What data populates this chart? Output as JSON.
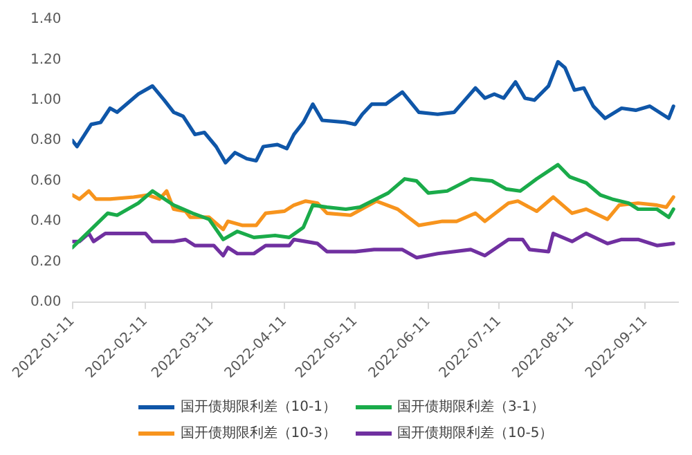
{
  "chart_data": {
    "type": "line",
    "xlim": [
      "2022-01-11",
      "2022-09-25"
    ],
    "xticks": [
      "2022-01-11",
      "2022-02-11",
      "2022-03-11",
      "2022-04-11",
      "2022-05-11",
      "2022-06-11",
      "2022-07-11",
      "2022-08-11",
      "2022-09-11"
    ],
    "ylim": [
      0,
      1.4
    ],
    "yticks": [
      {
        "value": 0,
        "label": "0.00"
      },
      {
        "value": 0.2,
        "label": "0.20"
      },
      {
        "value": 0.4,
        "label": "0.40"
      },
      {
        "value": 0.6,
        "label": "0.60"
      },
      {
        "value": 0.8,
        "label": "0.80"
      },
      {
        "value": 1,
        "label": "1.00"
      },
      {
        "value": 1.2,
        "label": "1.20"
      },
      {
        "value": 1.4,
        "label": "1.40"
      }
    ],
    "grid": false,
    "legend": "bottom",
    "marker": "none",
    "line_style": "solid",
    "series": [
      {
        "name": "国开债期限利差（10-1）",
        "color": "#0f56a8",
        "x": [
          "2022-01-11",
          "2022-01-13",
          "2022-01-19",
          "2022-01-23",
          "2022-01-27",
          "2022-01-30",
          "2022-02-08",
          "2022-02-14",
          "2022-02-19",
          "2022-02-23",
          "2022-02-27",
          "2022-03-04",
          "2022-03-08",
          "2022-03-13",
          "2022-03-17",
          "2022-03-21",
          "2022-03-26",
          "2022-03-30",
          "2022-04-02",
          "2022-04-08",
          "2022-04-12",
          "2022-04-15",
          "2022-04-19",
          "2022-04-23",
          "2022-04-27",
          "2022-05-07",
          "2022-05-11",
          "2022-05-14",
          "2022-05-18",
          "2022-05-24",
          "2022-05-31",
          "2022-06-07",
          "2022-06-15",
          "2022-06-22",
          "2022-06-25",
          "2022-07-01",
          "2022-07-05",
          "2022-07-09",
          "2022-07-13",
          "2022-07-18",
          "2022-07-22",
          "2022-07-26",
          "2022-08-01",
          "2022-08-05",
          "2022-08-08",
          "2022-08-12",
          "2022-08-16",
          "2022-08-20",
          "2022-08-25",
          "2022-09-01",
          "2022-09-07",
          "2022-09-13",
          "2022-09-17",
          "2022-09-21",
          "2022-09-23"
        ],
        "values": [
          0.8,
          0.77,
          0.88,
          0.89,
          0.96,
          0.94,
          1.03,
          1.07,
          1.0,
          0.94,
          0.92,
          0.83,
          0.84,
          0.77,
          0.69,
          0.74,
          0.71,
          0.7,
          0.77,
          0.78,
          0.76,
          0.83,
          0.89,
          0.98,
          0.9,
          0.89,
          0.88,
          0.93,
          0.98,
          0.98,
          1.04,
          0.94,
          0.93,
          0.94,
          0.98,
          1.06,
          1.01,
          1.03,
          1.01,
          1.09,
          1.01,
          1.0,
          1.07,
          1.19,
          1.16,
          1.05,
          1.06,
          0.97,
          0.91,
          0.96,
          0.95,
          0.97,
          0.94,
          0.91,
          0.97
        ]
      },
      {
        "name": "国开债期限利差（3-1）",
        "color": "#1aab4a",
        "x": [
          "2022-01-11",
          "2022-01-19",
          "2022-01-26",
          "2022-01-30",
          "2022-02-08",
          "2022-02-14",
          "2022-02-23",
          "2022-03-01",
          "2022-03-03",
          "2022-03-10",
          "2022-03-16",
          "2022-03-22",
          "2022-03-29",
          "2022-04-07",
          "2022-04-13",
          "2022-04-19",
          "2022-04-23",
          "2022-04-29",
          "2022-05-07",
          "2022-05-13",
          "2022-05-25",
          "2022-06-01",
          "2022-06-06",
          "2022-06-11",
          "2022-06-19",
          "2022-06-29",
          "2022-07-08",
          "2022-07-14",
          "2022-07-20",
          "2022-07-27",
          "2022-08-05",
          "2022-08-10",
          "2022-08-17",
          "2022-08-23",
          "2022-08-28",
          "2022-09-04",
          "2022-09-08",
          "2022-09-16",
          "2022-09-21",
          "2022-09-23"
        ],
        "values": [
          0.27,
          0.36,
          0.44,
          0.43,
          0.49,
          0.55,
          0.48,
          0.45,
          0.44,
          0.41,
          0.31,
          0.35,
          0.32,
          0.33,
          0.32,
          0.37,
          0.48,
          0.47,
          0.46,
          0.47,
          0.54,
          0.61,
          0.6,
          0.54,
          0.55,
          0.61,
          0.6,
          0.56,
          0.55,
          0.61,
          0.68,
          0.62,
          0.59,
          0.53,
          0.51,
          0.49,
          0.46,
          0.46,
          0.42,
          0.46
        ]
      },
      {
        "name": "国开债期限利差（10-3）",
        "color": "#f7941d",
        "x": [
          "2022-01-11",
          "2022-01-14",
          "2022-01-18",
          "2022-01-21",
          "2022-01-27",
          "2022-02-06",
          "2022-02-12",
          "2022-02-17",
          "2022-02-20",
          "2022-02-23",
          "2022-02-28",
          "2022-03-02",
          "2022-03-10",
          "2022-03-16",
          "2022-03-18",
          "2022-03-24",
          "2022-03-30",
          "2022-04-03",
          "2022-04-11",
          "2022-04-15",
          "2022-04-20",
          "2022-04-25",
          "2022-04-29",
          "2022-05-09",
          "2022-05-20",
          "2022-05-29",
          "2022-06-07",
          "2022-06-17",
          "2022-06-23",
          "2022-07-01",
          "2022-07-05",
          "2022-07-15",
          "2022-07-19",
          "2022-07-27",
          "2022-08-03",
          "2022-08-11",
          "2022-08-17",
          "2022-08-26",
          "2022-08-31",
          "2022-09-08",
          "2022-09-16",
          "2022-09-20",
          "2022-09-23"
        ],
        "values": [
          0.53,
          0.51,
          0.55,
          0.51,
          0.51,
          0.52,
          0.53,
          0.51,
          0.55,
          0.46,
          0.45,
          0.42,
          0.42,
          0.36,
          0.4,
          0.38,
          0.38,
          0.44,
          0.45,
          0.48,
          0.5,
          0.49,
          0.44,
          0.43,
          0.5,
          0.46,
          0.38,
          0.4,
          0.4,
          0.44,
          0.4,
          0.49,
          0.5,
          0.45,
          0.52,
          0.44,
          0.46,
          0.41,
          0.48,
          0.49,
          0.48,
          0.47,
          0.52
        ]
      },
      {
        "name": "国开债期限利差（10-5）",
        "color": "#7030a0",
        "x": [
          "2022-01-11",
          "2022-01-14",
          "2022-01-18",
          "2022-01-20",
          "2022-01-25",
          "2022-02-06",
          "2022-02-11",
          "2022-02-14",
          "2022-02-23",
          "2022-02-28",
          "2022-03-04",
          "2022-03-12",
          "2022-03-16",
          "2022-03-18",
          "2022-03-22",
          "2022-03-29",
          "2022-04-03",
          "2022-04-13",
          "2022-04-15",
          "2022-04-25",
          "2022-04-29",
          "2022-05-11",
          "2022-05-19",
          "2022-05-31",
          "2022-06-06",
          "2022-06-15",
          "2022-06-29",
          "2022-07-05",
          "2022-07-15",
          "2022-07-21",
          "2022-07-24",
          "2022-08-01",
          "2022-08-03",
          "2022-08-11",
          "2022-08-17",
          "2022-08-26",
          "2022-09-01",
          "2022-09-08",
          "2022-09-16",
          "2022-09-23"
        ],
        "values": [
          0.3,
          0.3,
          0.34,
          0.3,
          0.34,
          0.34,
          0.34,
          0.3,
          0.3,
          0.31,
          0.28,
          0.28,
          0.23,
          0.27,
          0.24,
          0.24,
          0.28,
          0.28,
          0.31,
          0.29,
          0.25,
          0.25,
          0.26,
          0.26,
          0.22,
          0.24,
          0.26,
          0.23,
          0.31,
          0.31,
          0.26,
          0.25,
          0.34,
          0.3,
          0.34,
          0.29,
          0.31,
          0.31,
          0.28,
          0.29
        ]
      }
    ]
  }
}
